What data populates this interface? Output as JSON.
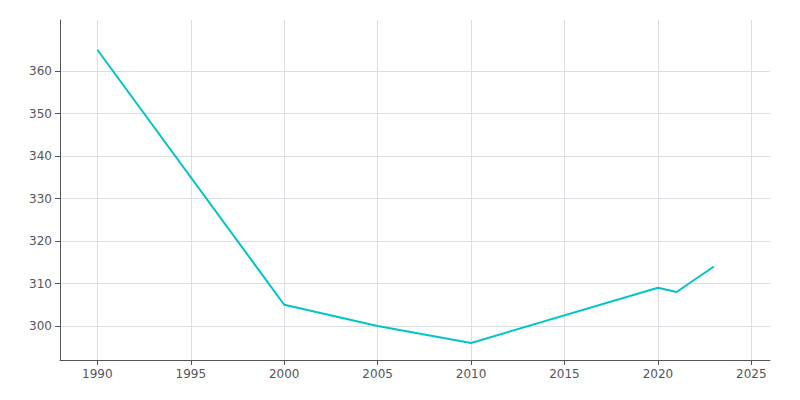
{
  "chart_data": {
    "type": "line",
    "x": [
      1990,
      2000,
      2005,
      2010,
      2020,
      2021,
      2023
    ],
    "values": [
      365,
      305,
      300,
      296,
      309,
      308,
      314
    ],
    "color": "#00C5C8",
    "xlim": [
      1988,
      2026
    ],
    "ylim": [
      292,
      372
    ],
    "xticks": [
      1990,
      1995,
      2000,
      2005,
      2010,
      2015,
      2020,
      2025
    ],
    "yticks": [
      300,
      310,
      320,
      330,
      340,
      350,
      360
    ],
    "grid": true
  }
}
